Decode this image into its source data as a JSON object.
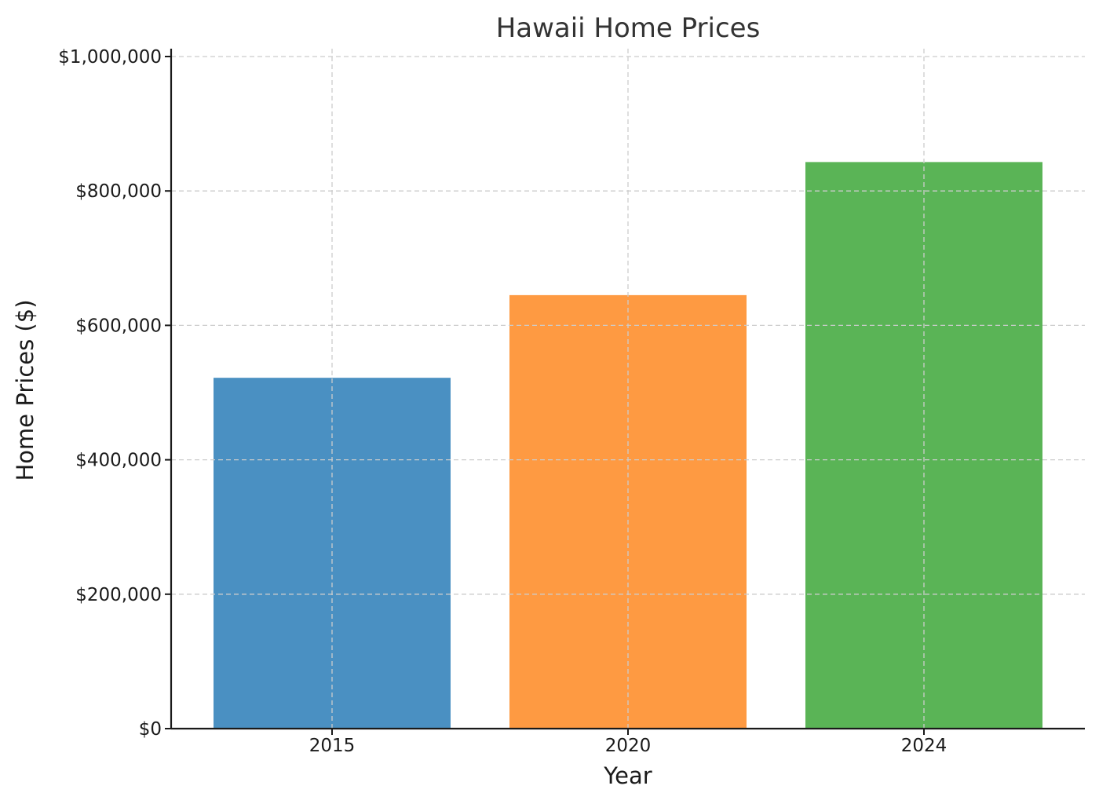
{
  "chart_data": {
    "type": "bar",
    "title": "Hawaii Home Prices",
    "xlabel": "Year",
    "ylabel": "Home Prices ($)",
    "categories": [
      "2015",
      "2020",
      "2024"
    ],
    "values": [
      522000,
      645000,
      843000
    ],
    "colors": [
      "#4a90c2",
      "#fe9a42",
      "#5ab456"
    ],
    "ylim": [
      0,
      1000000
    ],
    "yticks": [
      0,
      200000,
      400000,
      600000,
      800000,
      1000000
    ],
    "ytick_labels": [
      "$0",
      "$200,000",
      "$400,000",
      "$600,000",
      "$800,000",
      "$1,000,000"
    ],
    "grid": true
  }
}
